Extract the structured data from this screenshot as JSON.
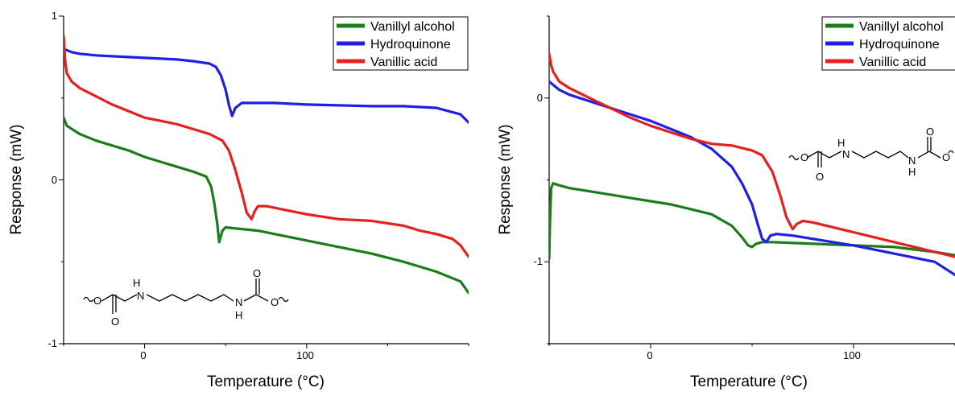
{
  "chart_data": [
    {
      "type": "line",
      "xlabel": "Temperature (°C)",
      "ylabel": "Response (mW)",
      "xlim": [
        -50,
        200
      ],
      "ylim": [
        -1,
        1
      ],
      "x_ticks": [
        "0",
        "100"
      ],
      "y_ticks": [
        "-1",
        "0",
        "1"
      ],
      "legend_position": "top-right",
      "structure_labels": [
        "H",
        "O",
        "O",
        "O",
        "N",
        "N",
        "O",
        "H"
      ],
      "series": [
        {
          "name": "Vanillyl alcohol",
          "color": "#1a7d1a",
          "x": [
            -50,
            -48,
            -40,
            -30,
            -20,
            -10,
            0,
            10,
            20,
            30,
            38,
            41,
            43,
            45,
            46,
            48,
            50,
            60,
            70,
            80,
            100,
            120,
            140,
            160,
            180,
            195,
            200
          ],
          "y": [
            0.38,
            0.33,
            0.28,
            0.24,
            0.21,
            0.18,
            0.14,
            0.11,
            0.08,
            0.05,
            0.02,
            -0.04,
            -0.14,
            -0.28,
            -0.38,
            -0.31,
            -0.29,
            -0.3,
            -0.31,
            -0.33,
            -0.37,
            -0.41,
            -0.45,
            -0.5,
            -0.56,
            -0.62,
            -0.69
          ]
        },
        {
          "name": "Hydroquinone",
          "color": "#1f1fe6",
          "x": [
            -50,
            -45,
            -40,
            -30,
            -20,
            -10,
            0,
            10,
            20,
            30,
            40,
            44,
            47,
            50,
            52,
            54,
            56,
            60,
            70,
            80,
            100,
            120,
            140,
            160,
            180,
            195,
            200
          ],
          "y": [
            0.8,
            0.78,
            0.77,
            0.76,
            0.755,
            0.75,
            0.745,
            0.74,
            0.735,
            0.725,
            0.71,
            0.69,
            0.64,
            0.55,
            0.46,
            0.39,
            0.44,
            0.47,
            0.47,
            0.47,
            0.46,
            0.455,
            0.45,
            0.45,
            0.44,
            0.4,
            0.35
          ]
        },
        {
          "name": "Vanillic acid",
          "color": "#e61f1f",
          "x": [
            -50,
            -49,
            -48,
            -45,
            -40,
            -30,
            -20,
            -10,
            0,
            10,
            20,
            30,
            40,
            48,
            52,
            56,
            60,
            63,
            66,
            68,
            70,
            75,
            80,
            90,
            100,
            120,
            140,
            160,
            170,
            180,
            190,
            195,
            200
          ],
          "y": [
            0.88,
            0.72,
            0.65,
            0.6,
            0.56,
            0.51,
            0.46,
            0.42,
            0.38,
            0.36,
            0.34,
            0.31,
            0.28,
            0.24,
            0.18,
            0.06,
            -0.08,
            -0.2,
            -0.24,
            -0.19,
            -0.16,
            -0.16,
            -0.17,
            -0.19,
            -0.21,
            -0.24,
            -0.25,
            -0.28,
            -0.31,
            -0.33,
            -0.36,
            -0.4,
            -0.47
          ]
        }
      ]
    },
    {
      "type": "line",
      "xlabel": "Temperature (°C)",
      "ylabel": "Response (mW)",
      "xlim": [
        -50,
        150
      ],
      "ylim": [
        -1.5,
        0.5
      ],
      "x_ticks": [
        "0",
        "100"
      ],
      "y_ticks": [
        "-1",
        "0"
      ],
      "legend_position": "top-right",
      "structure_labels": [
        "O",
        "H",
        "N",
        "O",
        "N",
        "H",
        "O",
        "O"
      ],
      "series": [
        {
          "name": "Vanillyl alcohol",
          "color": "#1a7d1a",
          "x": [
            -50,
            -49.5,
            -49,
            -48,
            -46,
            -40,
            -30,
            -20,
            -10,
            0,
            10,
            20,
            30,
            40,
            45,
            48,
            50,
            52,
            55,
            60,
            80,
            100,
            120,
            140,
            150
          ],
          "y": [
            -0.98,
            -0.7,
            -0.55,
            -0.52,
            -0.53,
            -0.55,
            -0.57,
            -0.59,
            -0.61,
            -0.63,
            -0.65,
            -0.68,
            -0.71,
            -0.78,
            -0.85,
            -0.9,
            -0.91,
            -0.89,
            -0.88,
            -0.88,
            -0.89,
            -0.9,
            -0.91,
            -0.94,
            -0.96
          ]
        },
        {
          "name": "Hydroquinone",
          "color": "#1f1fe6",
          "x": [
            -50,
            -45,
            -40,
            -30,
            -20,
            -10,
            0,
            10,
            20,
            30,
            40,
            45,
            50,
            53,
            55,
            57,
            59,
            62,
            70,
            80,
            100,
            120,
            140,
            150
          ],
          "y": [
            0.1,
            0.05,
            0.02,
            -0.02,
            -0.06,
            -0.1,
            -0.14,
            -0.19,
            -0.24,
            -0.31,
            -0.42,
            -0.52,
            -0.65,
            -0.78,
            -0.86,
            -0.88,
            -0.84,
            -0.83,
            -0.84,
            -0.86,
            -0.9,
            -0.95,
            -1.0,
            -1.08
          ]
        },
        {
          "name": "Vanillic acid",
          "color": "#e61f1f",
          "x": [
            -50,
            -49,
            -48,
            -45,
            -40,
            -30,
            -20,
            -10,
            0,
            10,
            20,
            30,
            40,
            50,
            55,
            60,
            64,
            67,
            70,
            72,
            75,
            80,
            100,
            120,
            140,
            150
          ],
          "y": [
            0.27,
            0.2,
            0.16,
            0.1,
            0.06,
            0.0,
            -0.06,
            -0.12,
            -0.17,
            -0.21,
            -0.25,
            -0.28,
            -0.29,
            -0.32,
            -0.35,
            -0.45,
            -0.6,
            -0.73,
            -0.8,
            -0.77,
            -0.75,
            -0.76,
            -0.82,
            -0.88,
            -0.94,
            -0.97
          ]
        }
      ]
    }
  ]
}
